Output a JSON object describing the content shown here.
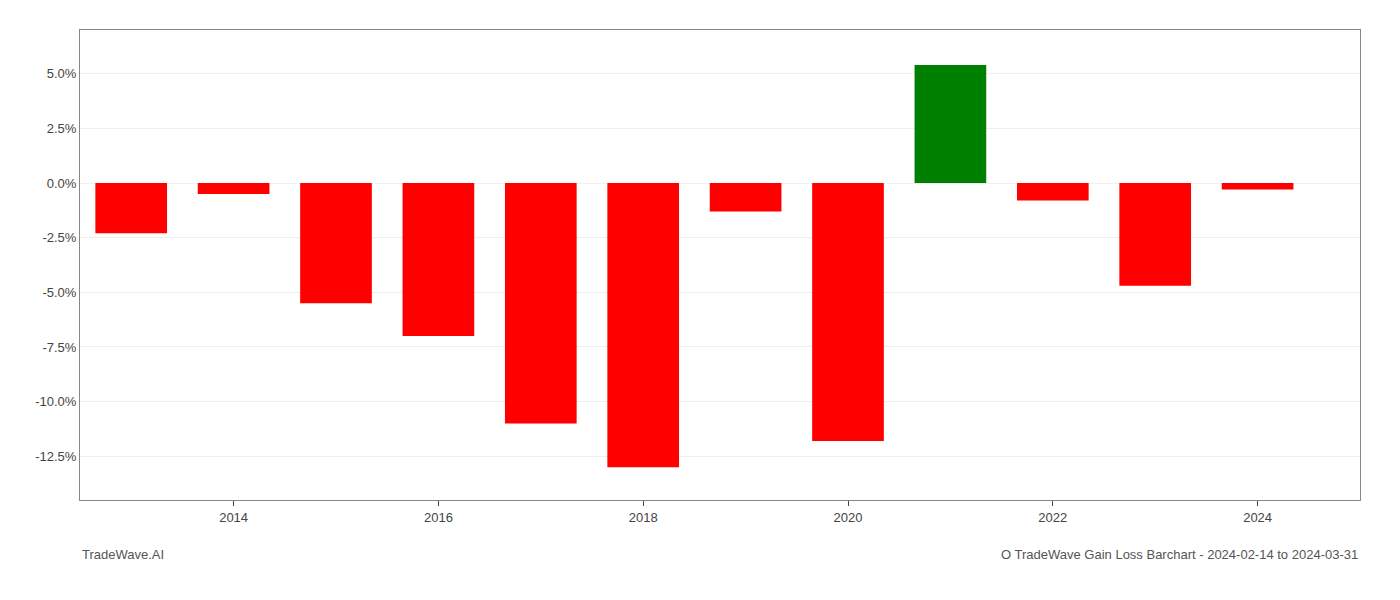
{
  "chart_data": {
    "type": "bar",
    "title": "O TradeWave Gain Loss Barchart - 2024-02-14 to 2024-03-31",
    "annotations": [
      "TradeWave.AI"
    ],
    "x": [
      2013,
      2014,
      2015,
      2016,
      2017,
      2018,
      2019,
      2020,
      2021,
      2022,
      2023,
      2024
    ],
    "values": [
      -2.3,
      -0.5,
      -5.5,
      -7.0,
      -11.0,
      -13.0,
      -1.3,
      -11.8,
      5.4,
      -0.8,
      -4.7,
      -0.3
    ],
    "colors": [
      "#ff0000",
      "#ff0000",
      "#ff0000",
      "#ff0000",
      "#ff0000",
      "#ff0000",
      "#ff0000",
      "#ff0000",
      "#008000",
      "#ff0000",
      "#ff0000",
      "#ff0000"
    ],
    "xlim": [
      2012.5,
      2025.0
    ],
    "xticks": [
      2014,
      2016,
      2018,
      2020,
      2022,
      2024
    ],
    "ylim": [
      -14.5,
      7.0
    ],
    "yticks": [
      {
        "value": 5.0,
        "label": "5.0%"
      },
      {
        "value": 2.5,
        "label": "2.5%"
      },
      {
        "value": 0.0,
        "label": "0.0%"
      },
      {
        "value": -2.5,
        "label": "-2.5%"
      },
      {
        "value": -5.0,
        "label": "-5.0%"
      },
      {
        "value": -7.5,
        "label": "-7.5%"
      },
      {
        "value": -10.0,
        "label": "-10.0%"
      },
      {
        "value": -12.5,
        "label": "-12.5%"
      }
    ],
    "grid": "y"
  }
}
